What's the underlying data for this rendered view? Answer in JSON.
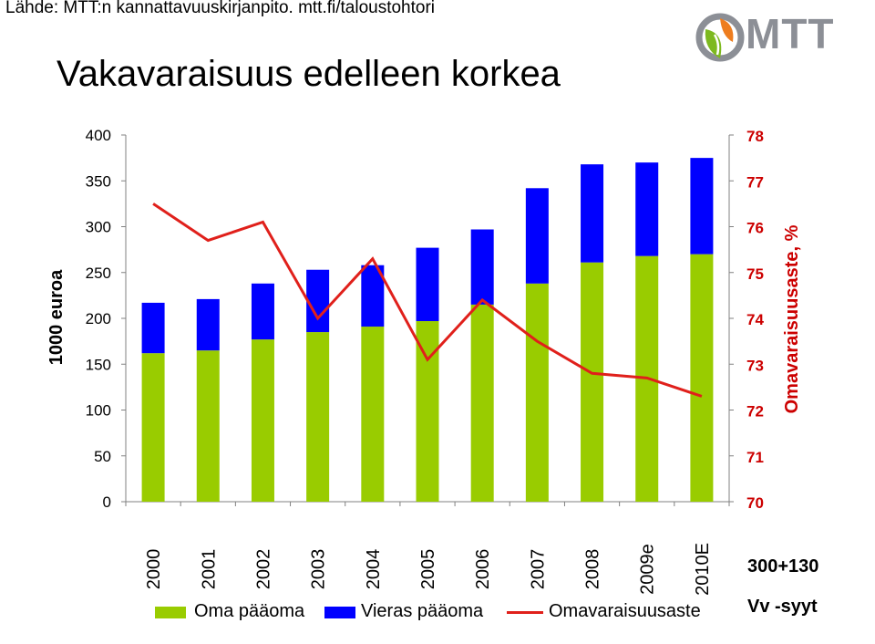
{
  "source_text": "Lähde: MTT:n kannattavuuskirjanpito. mtt.fi/taloustohtori",
  "logo_text": "MTT",
  "note_primary": "300+130",
  "note_secondary": "Vv -syyt",
  "colors": {
    "equity": "#99cc00",
    "debt": "#0000ff",
    "ratio": "#e0201b",
    "logo_gray": "#8c8f96",
    "logo_orange": "#ee7d1e",
    "logo_green": "#7db91f",
    "right_axis_text": "#cc0000"
  },
  "icons": {
    "logo": "mtt-logo-icon"
  },
  "chart_data": {
    "type": "bar",
    "stacked": true,
    "title": "Vakavaraisuus edelleen korkea",
    "ylabel": "1000 euroa",
    "y2label": "Omavaraisuusaste, %",
    "ylim": [
      0,
      400
    ],
    "y2lim": [
      70,
      78
    ],
    "yticks": [
      0,
      50,
      100,
      150,
      200,
      250,
      300,
      350,
      400
    ],
    "y2ticks": [
      70,
      71,
      72,
      73,
      74,
      75,
      76,
      77,
      78
    ],
    "grid": false,
    "legend_position": "bottom",
    "categories": [
      "2000",
      "2001",
      "2002",
      "2003",
      "2004",
      "2005",
      "2006",
      "2007",
      "2008",
      "2009e",
      "2010E"
    ],
    "series": [
      {
        "name": "Oma pääoma",
        "kind": "bar",
        "axis": "left",
        "values": [
          162,
          165,
          177,
          185,
          191,
          197,
          215,
          238,
          261,
          268,
          270
        ]
      },
      {
        "name": "Vieras pääoma",
        "kind": "bar",
        "axis": "left",
        "values": [
          55,
          56,
          61,
          68,
          67,
          80,
          82,
          104,
          107,
          102,
          105
        ]
      },
      {
        "name": "Omavaraisuusaste",
        "kind": "line",
        "axis": "right",
        "values": [
          76.5,
          75.7,
          76.1,
          74.0,
          75.3,
          73.1,
          74.4,
          73.5,
          72.8,
          72.7,
          72.3
        ]
      }
    ]
  }
}
